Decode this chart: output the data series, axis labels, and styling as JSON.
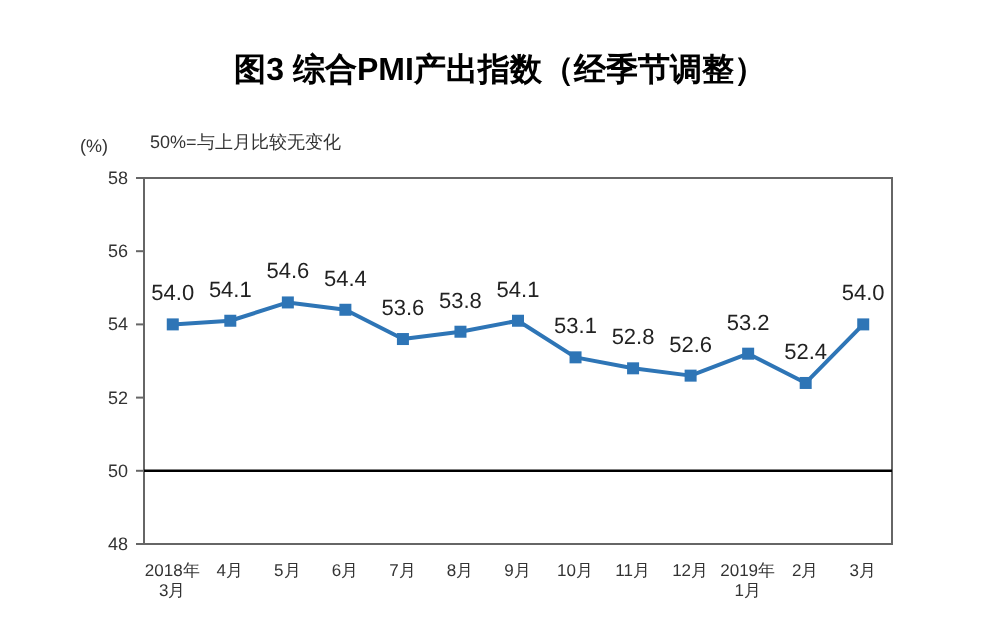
{
  "chart_data": {
    "type": "line",
    "title": "图3 综合PMI产出指数（经季节调整）",
    "ylabel": "(%)",
    "annotations": [
      "50%=与上月比较无变化"
    ],
    "categories": [
      "2018年\n3月",
      "4月",
      "5月",
      "6月",
      "7月",
      "8月",
      "9月",
      "10月",
      "11月",
      "12月",
      "2019年\n1月",
      "2月",
      "3月"
    ],
    "series": [
      {
        "color": "#2e75b6",
        "values": [
          54.0,
          54.1,
          54.6,
          54.4,
          53.6,
          53.8,
          54.1,
          53.1,
          52.8,
          52.6,
          53.2,
          52.4,
          54.0
        ],
        "value_labels": [
          "54.0",
          "54.1",
          "54.6",
          "54.4",
          "53.6",
          "53.8",
          "54.1",
          "53.1",
          "52.8",
          "52.6",
          "53.2",
          "52.4",
          "54.0"
        ]
      }
    ],
    "ylim": [
      48,
      58
    ],
    "yticks": [
      48,
      50,
      52,
      54,
      56,
      58
    ],
    "ref_lines": [
      {
        "axis": "y",
        "value": 50,
        "color": "#000000"
      }
    ],
    "marker": "square",
    "line_style": "solid",
    "grid": false
  }
}
